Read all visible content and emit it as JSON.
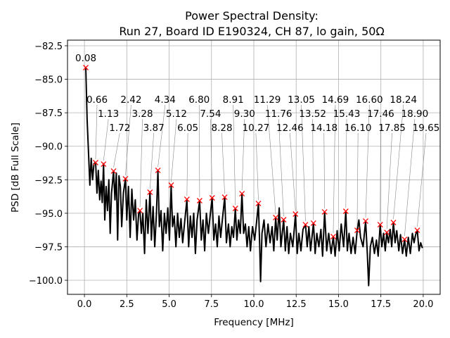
{
  "chart_data": {
    "type": "line",
    "title": "Power Spectral Density:",
    "subtitle": "Run 27, Board ID E190324, CH 87, lo gain, 50Ω",
    "xlabel": "Frequency [MHz]",
    "ylabel": "PSD [dB Full Scale]",
    "xlim": [
      -1.0,
      21.0
    ],
    "ylim": [
      -101.05,
      -82.08
    ],
    "xticks": [
      0.0,
      2.5,
      5.0,
      7.5,
      10.0,
      12.5,
      15.0,
      17.5,
      20.0
    ],
    "xtick_labels": [
      "0.0",
      "2.5",
      "5.0",
      "7.5",
      "10.0",
      "12.5",
      "15.0",
      "17.5",
      "20.0"
    ],
    "yticks": [
      -82.5,
      -85.0,
      -87.5,
      -90.0,
      -92.5,
      -95.0,
      -97.5,
      -100.0
    ],
    "ytick_labels": [
      "−82.5",
      "−85.0",
      "−87.5",
      "−90.0",
      "−92.5",
      "−95.0",
      "−97.5",
      "−100.0"
    ],
    "grid": true,
    "line_color": "#000000",
    "marker_color": "#ff0000",
    "marker": "x",
    "trace": [
      [
        0.08,
        -84.1
      ],
      [
        0.16,
        -88
      ],
      [
        0.24,
        -90.5
      ],
      [
        0.32,
        -92.9
      ],
      [
        0.4,
        -90.9
      ],
      [
        0.48,
        -92.5
      ],
      [
        0.56,
        -91.3
      ],
      [
        0.66,
        -91.2
      ],
      [
        0.74,
        -93.5
      ],
      [
        0.82,
        -91.8
      ],
      [
        0.9,
        -94
      ],
      [
        0.98,
        -92.6
      ],
      [
        1.05,
        -94.2
      ],
      [
        1.13,
        -91.3
      ],
      [
        1.2,
        -95.5
      ],
      [
        1.28,
        -93
      ],
      [
        1.36,
        -94.8
      ],
      [
        1.44,
        -92.5
      ],
      [
        1.52,
        -96.5
      ],
      [
        1.6,
        -93.5
      ],
      [
        1.72,
        -91.85
      ],
      [
        1.8,
        -94
      ],
      [
        1.88,
        -92
      ],
      [
        1.96,
        -97
      ],
      [
        2.04,
        -92.2
      ],
      [
        2.12,
        -93
      ],
      [
        2.2,
        -96
      ],
      [
        2.3,
        -93.5
      ],
      [
        2.42,
        -92.4
      ],
      [
        2.5,
        -95.5
      ],
      [
        2.6,
        -93
      ],
      [
        2.7,
        -96.8
      ],
      [
        2.8,
        -93.2
      ],
      [
        2.9,
        -95.5
      ],
      [
        3.0,
        -94
      ],
      [
        3.1,
        -97
      ],
      [
        3.2,
        -95
      ],
      [
        3.28,
        -94.8
      ],
      [
        3.36,
        -96.5
      ],
      [
        3.45,
        -95
      ],
      [
        3.55,
        -98
      ],
      [
        3.65,
        -94
      ],
      [
        3.75,
        -96.5
      ],
      [
        3.87,
        -93.4
      ],
      [
        3.95,
        -97
      ],
      [
        4.05,
        -94.5
      ],
      [
        4.15,
        -97.5
      ],
      [
        4.25,
        -95
      ],
      [
        4.34,
        -91.8
      ],
      [
        4.42,
        -96
      ],
      [
        4.52,
        -94.8
      ],
      [
        4.62,
        -97.8
      ],
      [
        4.72,
        -95
      ],
      [
        4.82,
        -96.5
      ],
      [
        4.92,
        -94.6
      ],
      [
        5.02,
        -97
      ],
      [
        5.12,
        -92.9
      ],
      [
        5.2,
        -96
      ],
      [
        5.3,
        -95.2
      ],
      [
        5.4,
        -97.5
      ],
      [
        5.5,
        -95
      ],
      [
        5.6,
        -96.8
      ],
      [
        5.7,
        -95.4
      ],
      [
        5.8,
        -97.2
      ],
      [
        5.92,
        -95.6
      ],
      [
        6.05,
        -94
      ],
      [
        6.15,
        -97.5
      ],
      [
        6.25,
        -95.2
      ],
      [
        6.35,
        -96.8
      ],
      [
        6.45,
        -95
      ],
      [
        6.55,
        -98
      ],
      [
        6.65,
        -95.5
      ],
      [
        6.8,
        -94.06
      ],
      [
        6.9,
        -97
      ],
      [
        7.0,
        -95.5
      ],
      [
        7.1,
        -97.8
      ],
      [
        7.2,
        -95
      ],
      [
        7.32,
        -96.5
      ],
      [
        7.42,
        -95.2
      ],
      [
        7.54,
        -93.85
      ],
      [
        7.64,
        -97
      ],
      [
        7.74,
        -95.8
      ],
      [
        7.84,
        -97.5
      ],
      [
        7.94,
        -95.2
      ],
      [
        8.04,
        -96.8
      ],
      [
        8.14,
        -95.5
      ],
      [
        8.28,
        -93.8
      ],
      [
        8.38,
        -97.2
      ],
      [
        8.5,
        -95.8
      ],
      [
        8.6,
        -97.5
      ],
      [
        8.7,
        -96
      ],
      [
        8.8,
        -96.8
      ],
      [
        8.91,
        -94.64
      ],
      [
        9.0,
        -97
      ],
      [
        9.1,
        -95.5
      ],
      [
        9.2,
        -96.5
      ],
      [
        9.3,
        -93.54
      ],
      [
        9.4,
        -96.5
      ],
      [
        9.5,
        -95.8
      ],
      [
        9.6,
        -97.5
      ],
      [
        9.7,
        -96
      ],
      [
        9.8,
        -97.8
      ],
      [
        9.92,
        -96
      ],
      [
        10.05,
        -97
      ],
      [
        10.15,
        -95.8
      ],
      [
        10.27,
        -94.27
      ],
      [
        10.35,
        -97.5
      ],
      [
        10.4,
        -100.1
      ],
      [
        10.48,
        -96.5
      ],
      [
        10.6,
        -95.5
      ],
      [
        10.72,
        -97.5
      ],
      [
        10.84,
        -95.8
      ],
      [
        10.96,
        -97.2
      ],
      [
        11.08,
        -96
      ],
      [
        11.18,
        -97.8
      ],
      [
        11.29,
        -95.32
      ],
      [
        11.38,
        -97
      ],
      [
        11.5,
        -94.6
      ],
      [
        11.6,
        -97.5
      ],
      [
        11.76,
        -95.48
      ],
      [
        11.86,
        -97.8
      ],
      [
        11.96,
        -96
      ],
      [
        12.06,
        -98
      ],
      [
        12.16,
        -96.5
      ],
      [
        12.3,
        -97.5
      ],
      [
        12.46,
        -95.06
      ],
      [
        12.56,
        -98
      ],
      [
        12.66,
        -96.5
      ],
      [
        12.78,
        -97.8
      ],
      [
        12.9,
        -96.2
      ],
      [
        13.05,
        -95.85
      ],
      [
        13.15,
        -97.5
      ],
      [
        13.25,
        -96
      ],
      [
        13.35,
        -97.8
      ],
      [
        13.52,
        -95.74
      ],
      [
        13.62,
        -98
      ],
      [
        13.72,
        -96.5
      ],
      [
        13.84,
        -97.5
      ],
      [
        13.96,
        -96.2
      ],
      [
        14.06,
        -98.2
      ],
      [
        14.18,
        -94.9
      ],
      [
        14.3,
        -97.8
      ],
      [
        14.42,
        -96.5
      ],
      [
        14.56,
        -98
      ],
      [
        14.69,
        -96.74
      ],
      [
        14.8,
        -98.2
      ],
      [
        14.92,
        -96.3
      ],
      [
        15.04,
        -97.8
      ],
      [
        15.16,
        -95.8
      ],
      [
        15.3,
        -97.5
      ],
      [
        15.43,
        -94.85
      ],
      [
        15.52,
        -97.8
      ],
      [
        15.62,
        -96.5
      ],
      [
        15.74,
        -98
      ],
      [
        15.86,
        -96.8
      ],
      [
        15.98,
        -98
      ],
      [
        16.1,
        -96.27
      ],
      [
        16.2,
        -95.5
      ],
      [
        16.3,
        -96.8
      ],
      [
        16.45,
        -97.5
      ],
      [
        16.6,
        -95.58
      ],
      [
        16.7,
        -98
      ],
      [
        16.78,
        -100.4
      ],
      [
        16.88,
        -97.5
      ],
      [
        17.0,
        -96.8
      ],
      [
        17.12,
        -98
      ],
      [
        17.24,
        -97
      ],
      [
        17.34,
        -98.2
      ],
      [
        17.46,
        -95.85
      ],
      [
        17.56,
        -97.5
      ],
      [
        17.66,
        -96.5
      ],
      [
        17.76,
        -97.8
      ],
      [
        17.85,
        -96.43
      ],
      [
        17.95,
        -97.2
      ],
      [
        18.05,
        -96.2
      ],
      [
        18.14,
        -97.5
      ],
      [
        18.24,
        -95.69
      ],
      [
        18.34,
        -97.2
      ],
      [
        18.44,
        -96.3
      ],
      [
        18.56,
        -97.8
      ],
      [
        18.66,
        -96.6
      ],
      [
        18.78,
        -98
      ],
      [
        18.9,
        -96.95
      ],
      [
        19.0,
        -98.2
      ],
      [
        19.12,
        -96.8
      ],
      [
        19.24,
        -98
      ],
      [
        19.36,
        -96.5
      ],
      [
        19.46,
        -97.2
      ],
      [
        19.55,
        -96.6
      ],
      [
        19.65,
        -96.27
      ],
      [
        19.75,
        -97.8
      ],
      [
        19.85,
        -97.2
      ],
      [
        19.95,
        -97.6
      ]
    ],
    "peaks": [
      {
        "x": 0.08,
        "y": -84.13,
        "label": "0.08"
      },
      {
        "x": 0.66,
        "y": -91.22,
        "label": "0.66"
      },
      {
        "x": 1.13,
        "y": -91.33,
        "label": "1.13"
      },
      {
        "x": 1.72,
        "y": -91.85,
        "label": "1.72"
      },
      {
        "x": 2.42,
        "y": -92.43,
        "label": "2.42"
      },
      {
        "x": 3.28,
        "y": -94.8,
        "label": "3.28"
      },
      {
        "x": 3.87,
        "y": -93.43,
        "label": "3.87"
      },
      {
        "x": 4.34,
        "y": -91.8,
        "label": "4.34"
      },
      {
        "x": 5.12,
        "y": -92.9,
        "label": "5.12"
      },
      {
        "x": 6.05,
        "y": -93.96,
        "label": "6.05"
      },
      {
        "x": 6.8,
        "y": -94.06,
        "label": "6.80"
      },
      {
        "x": 7.54,
        "y": -93.85,
        "label": "7.54"
      },
      {
        "x": 8.28,
        "y": -93.8,
        "label": "8.28"
      },
      {
        "x": 8.91,
        "y": -94.64,
        "label": "8.91"
      },
      {
        "x": 9.3,
        "y": -93.54,
        "label": "9.30"
      },
      {
        "x": 10.27,
        "y": -94.27,
        "label": "10.27"
      },
      {
        "x": 11.29,
        "y": -95.32,
        "label": "11.29"
      },
      {
        "x": 11.76,
        "y": -95.48,
        "label": "11.76"
      },
      {
        "x": 12.46,
        "y": -95.06,
        "label": "12.46"
      },
      {
        "x": 13.05,
        "y": -95.85,
        "label": "13.05"
      },
      {
        "x": 13.52,
        "y": -95.74,
        "label": "13.52"
      },
      {
        "x": 14.18,
        "y": -94.9,
        "label": "14.18"
      },
      {
        "x": 14.69,
        "y": -96.74,
        "label": "14.69"
      },
      {
        "x": 15.43,
        "y": -94.85,
        "label": "15.43"
      },
      {
        "x": 16.1,
        "y": -96.27,
        "label": "16.10"
      },
      {
        "x": 16.6,
        "y": -95.58,
        "label": "16.60"
      },
      {
        "x": 17.46,
        "y": -95.85,
        "label": "17.46"
      },
      {
        "x": 17.85,
        "y": -96.43,
        "label": "17.85"
      },
      {
        "x": 18.24,
        "y": -95.69,
        "label": "18.24"
      },
      {
        "x": 18.9,
        "y": -96.95,
        "label": "18.90"
      },
      {
        "x": 19.65,
        "y": -96.27,
        "label": "19.65"
      }
    ]
  }
}
